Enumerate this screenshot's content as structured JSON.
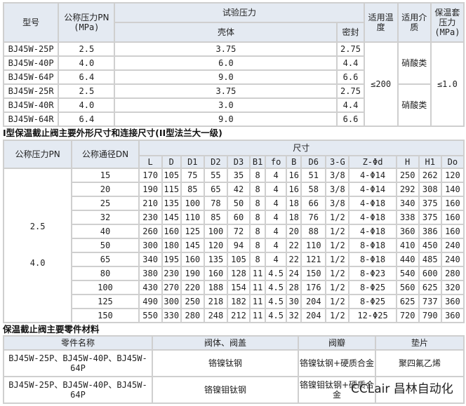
{
  "table1": {
    "headers": {
      "model": "型号",
      "pn": "公称压力PN",
      "pn_unit": "(MPa)",
      "test": "试验压力",
      "shell": "壳体",
      "seal": "密封",
      "temp": "适用温度",
      "medium": "适用介质",
      "jacket": "保温套压力",
      "jacket_unit": "(MPa)"
    },
    "rows": [
      [
        "BJ45W-25P",
        "2.5",
        "3.75",
        "2.75"
      ],
      [
        "BJ45W-40P",
        "4.0",
        "6.0",
        "4.4"
      ],
      [
        "BJ45W-64P",
        "6.4",
        "9.0",
        "6.6"
      ],
      [
        "BJ45W-25R",
        "2.5",
        "3.75",
        "2.75"
      ],
      [
        "BJ45W-40R",
        "4.0",
        "3.0",
        "4.4"
      ],
      [
        "BJ45W-64R",
        "6.4",
        "9.0",
        "6.6"
      ]
    ],
    "temp": "≤200",
    "medium_p": "硝酸类",
    "medium_r": "硝酸类",
    "jacket": "≤1.0"
  },
  "title2": "I型保温截止阀主要外形尺寸和连接尺寸(II型法兰大一级)",
  "table2": {
    "pn_header": "公称压力PN",
    "dn_header": "公称通径DN",
    "size_header": "尺寸",
    "cols": [
      "L",
      "D",
      "D1",
      "D2",
      "D3",
      "B1",
      "fo",
      "B",
      "D6",
      "3-G",
      "Z-Φd",
      "H",
      "H1",
      "Do"
    ],
    "pn_values": [
      "2.5",
      "4.0"
    ],
    "rows": [
      [
        "15",
        "170",
        "105",
        "75",
        "55",
        "35",
        "8",
        "4",
        "16",
        "51",
        "3/8",
        "4-Φ14",
        "250",
        "262",
        "120"
      ],
      [
        "20",
        "190",
        "115",
        "85",
        "65",
        "42",
        "8",
        "4",
        "16",
        "58",
        "3/8",
        "4-Φ14",
        "292",
        "308",
        "140"
      ],
      [
        "25",
        "210",
        "135",
        "100",
        "78",
        "50",
        "8",
        "4",
        "18",
        "66",
        "3/8",
        "4-Φ18",
        "340",
        "375",
        "160"
      ],
      [
        "32",
        "230",
        "145",
        "110",
        "85",
        "60",
        "8",
        "4",
        "18",
        "76",
        "1/2",
        "4-Φ18",
        "338",
        "375",
        "160"
      ],
      [
        "40",
        "260",
        "160",
        "125",
        "100",
        "72",
        "8",
        "4",
        "20",
        "88",
        "1/2",
        "4-Φ18",
        "360",
        "386",
        "160"
      ],
      [
        "50",
        "300",
        "180",
        "145",
        "120",
        "94",
        "8",
        "4",
        "22",
        "110",
        "1/2",
        "8-Φ18",
        "410",
        "450",
        "240"
      ],
      [
        "65",
        "340",
        "195",
        "160",
        "135",
        "105",
        "8",
        "4",
        "22",
        "121",
        "1/2",
        "8-Φ18",
        "440",
        "485",
        "240"
      ],
      [
        "80",
        "380",
        "230",
        "190",
        "160",
        "128",
        "11",
        "4.5",
        "24",
        "150",
        "1/2",
        "8-Φ23",
        "540",
        "600",
        "280"
      ],
      [
        "100",
        "430",
        "270",
        "220",
        "188",
        "154",
        "11",
        "4.5",
        "28",
        "176",
        "1/2",
        "8-Φ25",
        "560",
        "625",
        "320"
      ],
      [
        "125",
        "490",
        "300",
        "250",
        "218",
        "182",
        "11",
        "4.5",
        "30",
        "204",
        "1/2",
        "8-Φ25",
        "625",
        "737",
        "360"
      ],
      [
        "150",
        "550",
        "330",
        "280",
        "248",
        "212",
        "11",
        "4.5",
        "32",
        "204",
        "1/2",
        "12-Φ25",
        "720",
        "790",
        "360"
      ]
    ]
  },
  "title3": "保温截止阀主要零件材料",
  "table3": {
    "headers": [
      "零件名称",
      "阀体、阀盖",
      "阀瓣",
      "垫片"
    ],
    "rows": [
      [
        "BJ45W-25P、BJ45W-40P、BJ45W-64P",
        "铬镍钛钢",
        "铬镍钛钢+硬质合金",
        "聚四氟乙烯"
      ],
      [
        "BJ45W-25P、BJ45W-40P、BJ45W-64P",
        "铬镍钼钛钢",
        "铬镍钼钛钢+硬质合金",
        ""
      ]
    ]
  },
  "watermark": "CCLair 昌林自动化"
}
